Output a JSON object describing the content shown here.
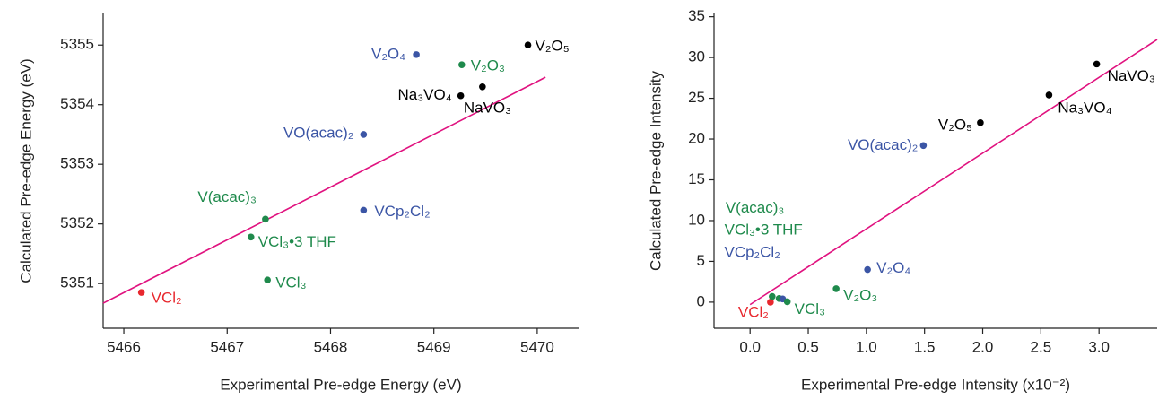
{
  "chart_data": [
    {
      "type": "scatter",
      "x_label": "Experimental Pre-edge Energy (eV)",
      "y_label": "Calculated Pre-edge Energy (eV)",
      "xlim": [
        5465.8,
        5470.4
      ],
      "ylim": [
        5350.25,
        5355.53
      ],
      "xticks": [
        5466,
        5467,
        5468,
        5469,
        5470
      ],
      "yticks": [
        5351,
        5352,
        5353,
        5354,
        5355
      ],
      "points": {
        "labels": [
          "VCl₂",
          "VCl₃",
          "VCl₃•3 THF",
          "V(acac)₃",
          "VCp₂Cl₂",
          "VO(acac)₂",
          "V₂O₄",
          "V₂O₃",
          "Na₃VO₄",
          "NaVO₃",
          "V₂O₅"
        ],
        "x": [
          5466.17,
          5467.39,
          5467.23,
          5467.37,
          5468.32,
          5468.32,
          5468.83,
          5469.27,
          5469.26,
          5469.47,
          5469.91
        ],
        "y": [
          5350.85,
          5351.06,
          5351.78,
          5352.08,
          5352.23,
          5353.5,
          5354.84,
          5354.67,
          5354.15,
          5354.3,
          5355.0
        ],
        "colors": [
          "#e8282e",
          "#1f8a4c",
          "#1f8a4c",
          "#1f8a4c",
          "#3b55a5",
          "#3b55a5",
          "#3b55a5",
          "#1f8a4c",
          "#000000",
          "#000000",
          "#000000"
        ]
      },
      "fit": {
        "x": [
          5465.8,
          5470.08
        ],
        "y": [
          5350.67,
          5354.46
        ],
        "color": "#e0127f"
      }
    },
    {
      "type": "scatter",
      "x_label": "Experimental Pre-edge Intensity (x10⁻²)",
      "y_label": "Calculated Pre-edge Intensity",
      "xlim": [
        -0.31,
        3.5
      ],
      "ylim": [
        -3.2,
        35.4
      ],
      "xticks": [
        {
          "value": 0,
          "label": "0.0"
        },
        0.5,
        {
          "value": 1,
          "label": "1.0"
        },
        1.5,
        {
          "value": 2,
          "label": "2.0"
        },
        2.5,
        {
          "value": 3,
          "label": "3.0"
        }
      ],
      "yticks": [
        0,
        5,
        10,
        15,
        20,
        25,
        30,
        35
      ],
      "points": {
        "labels": [
          "VCl₂",
          "V(acac)₃",
          "VCl₃•3 THF",
          "VCp₂Cl₂",
          "VCl₃",
          "V₂O₃",
          "V₂O₄",
          "VO(acac)₂",
          "V₂O₅",
          "Na₃VO₄",
          "NaVO₃"
        ],
        "x": [
          0.175,
          0.19,
          0.25,
          0.28,
          0.32,
          0.74,
          1.01,
          1.49,
          1.98,
          2.57,
          2.98
        ],
        "y": [
          0,
          0.7,
          0.45,
          0.4,
          0.05,
          1.65,
          4.0,
          19.2,
          22.0,
          25.4,
          29.2
        ],
        "colors": [
          "#e8282e",
          "#1f8a4c",
          "#1f8a4c",
          "#3b55a5",
          "#1f8a4c",
          "#1f8a4c",
          "#3b55a5",
          "#3b55a5",
          "#000000",
          "#000000",
          "#000000"
        ]
      },
      "fit": {
        "x": [
          0,
          3.5
        ],
        "y": [
          -0.3,
          32.2
        ],
        "color": "#e0127f"
      }
    }
  ]
}
